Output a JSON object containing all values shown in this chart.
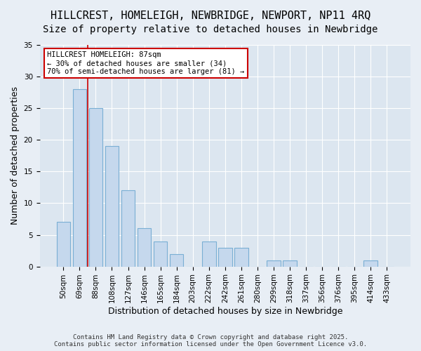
{
  "title1": "HILLCREST, HOMELEIGH, NEWBRIDGE, NEWPORT, NP11 4RQ",
  "title2": "Size of property relative to detached houses in Newbridge",
  "xlabel": "Distribution of detached houses by size in Newbridge",
  "ylabel": "Number of detached properties",
  "categories": [
    "50sqm",
    "69sqm",
    "88sqm",
    "108sqm",
    "127sqm",
    "146sqm",
    "165sqm",
    "184sqm",
    "203sqm",
    "222sqm",
    "242sqm",
    "261sqm",
    "280sqm",
    "299sqm",
    "318sqm",
    "337sqm",
    "356sqm",
    "376sqm",
    "395sqm",
    "414sqm",
    "433sqm"
  ],
  "values": [
    7,
    28,
    25,
    19,
    12,
    6,
    4,
    2,
    0,
    4,
    3,
    3,
    0,
    1,
    1,
    0,
    0,
    0,
    0,
    1,
    0
  ],
  "bar_color": "#c5d8ed",
  "bar_edge_color": "#7aafd4",
  "bg_color": "#e8eef5",
  "plot_bg_color": "#dce6f0",
  "grid_color": "#ffffff",
  "vline_x": 1.5,
  "vline_color": "#cc0000",
  "annotation_text": "HILLCREST HOMELEIGH: 87sqm\n← 30% of detached houses are smaller (34)\n70% of semi-detached houses are larger (81) →",
  "annotation_box_color": "#ffffff",
  "annotation_box_edge_color": "#cc0000",
  "ylim": [
    0,
    35
  ],
  "yticks": [
    0,
    5,
    10,
    15,
    20,
    25,
    30,
    35
  ],
  "footer": "Contains HM Land Registry data © Crown copyright and database right 2025.\nContains public sector information licensed under the Open Government Licence v3.0.",
  "title_fontsize": 11,
  "subtitle_fontsize": 10,
  "tick_fontsize": 7.5,
  "ylabel_fontsize": 9,
  "xlabel_fontsize": 9
}
